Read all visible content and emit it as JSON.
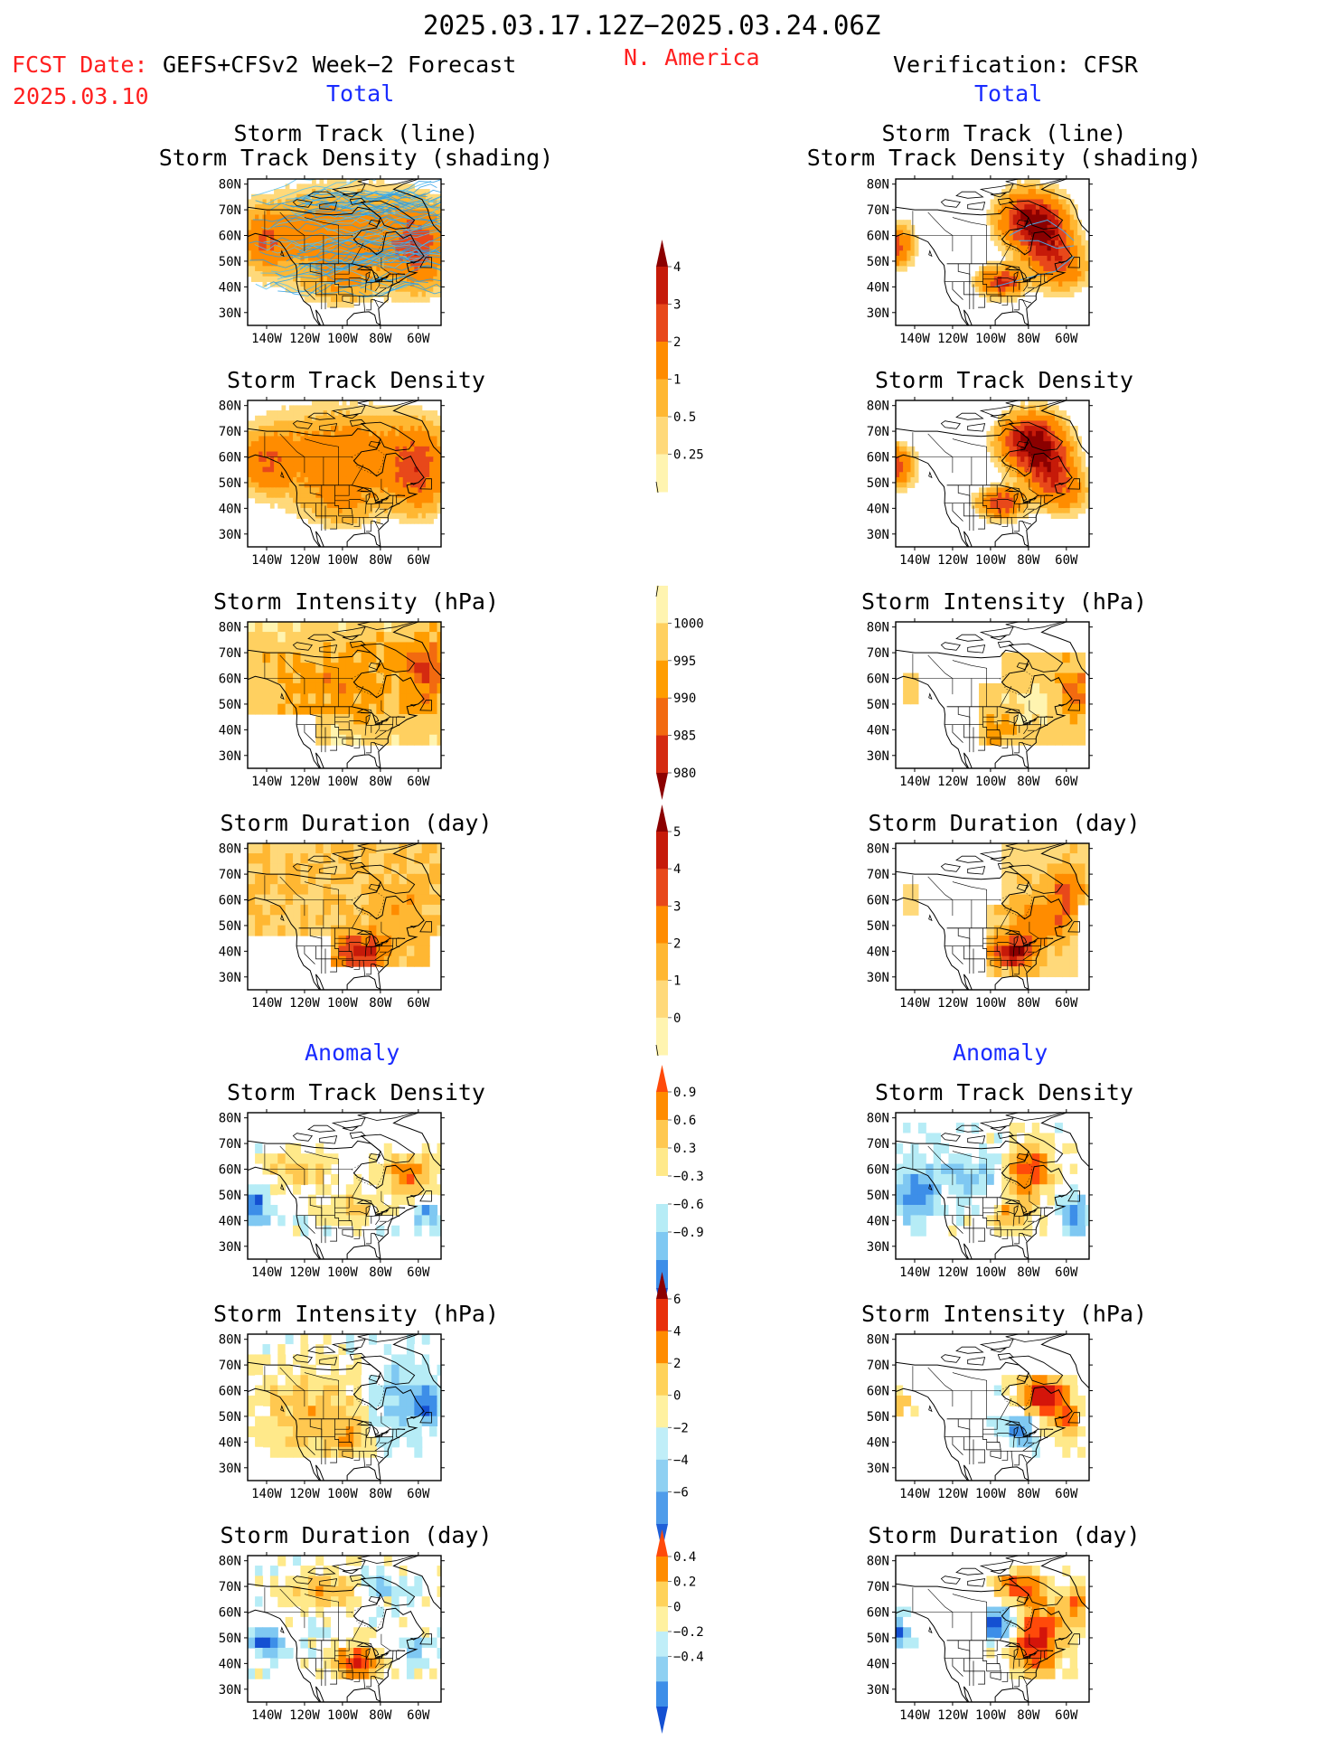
{
  "header": {
    "period": "2025.03.17.12Z−2025.03.24.06Z",
    "region": "N. America",
    "fcst_label": "FCST Date:",
    "fcst_date": "2025.03.10",
    "model": "GEFS+CFSv2 Week−2 Forecast",
    "verification": "Verification: CFSR"
  },
  "sections": {
    "left_total": "Total",
    "right_total": "Total",
    "left_anomaly": "Anomaly",
    "right_anomaly": "Anomaly"
  },
  "axes": {
    "lat_labels": [
      "80N",
      "70N",
      "60N",
      "50N",
      "40N",
      "30N"
    ],
    "lon_labels": [
      "140W",
      "120W",
      "100W",
      "80W",
      "60W"
    ]
  },
  "panels": {
    "track": {
      "title_line1": "Storm Track (line)",
      "title_line2": "Storm Track Density (shading)"
    },
    "density": {
      "title": "Storm Track Density"
    },
    "intensity": {
      "title": "Storm Intensity (hPa)"
    },
    "duration": {
      "title": "Storm Duration (day)"
    },
    "a_density": {
      "title": "Storm Track Density"
    },
    "a_intensity": {
      "title": "Storm Intensity (hPa)"
    },
    "a_duration": {
      "title": "Storm Duration (day)"
    }
  },
  "colorbars": {
    "density": {
      "labels": [
        "4",
        "3",
        "2",
        "1",
        "0.5",
        "0.25"
      ],
      "colors": [
        "#8b0000",
        "#c61a09",
        "#e8481a",
        "#ff8c00",
        "#ffb732",
        "#ffd97a",
        "#fff4b0"
      ]
    },
    "intensity": {
      "labels": [
        "1000",
        "995",
        "990",
        "985",
        "980"
      ],
      "colors": [
        "#fff4b0",
        "#ffd060",
        "#ff9d00",
        "#f26a10",
        "#d42a10",
        "#8b0000"
      ]
    },
    "duration": {
      "labels": [
        "5",
        "4",
        "3",
        "2",
        "1",
        "0"
      ],
      "colors": [
        "#8b0000",
        "#c61a09",
        "#e8481a",
        "#ff8c00",
        "#ffb732",
        "#ffd97a",
        "#fff4b0"
      ]
    },
    "a_density": {
      "labels": [
        "0.9",
        "0.6",
        "0.3",
        "−0.3",
        "−0.6",
        "−0.9"
      ],
      "colors": [
        "#ff4a0a",
        "#ff8c00",
        "#ffc850",
        "#ffe98a",
        "#ffffff",
        "#b6ecf6",
        "#7fc8f2",
        "#3d8ee8",
        "#1450d2"
      ]
    },
    "a_intensity": {
      "labels": [
        "6",
        "4",
        "2",
        "0",
        "−2",
        "−4",
        "−6"
      ],
      "colors": [
        "#8b0000",
        "#e8300a",
        "#ff8c00",
        "#ffd25a",
        "#fff1a0",
        "#c0eef8",
        "#8fd0f2",
        "#4f9cea",
        "#1f5fd8"
      ]
    },
    "a_duration": {
      "labels": [
        "0.4",
        "0.2",
        "0",
        "−0.2",
        "−0.4"
      ],
      "colors": [
        "#ff4a0a",
        "#ff8c00",
        "#ffd25a",
        "#fff1a0",
        "#c0eef8",
        "#8fd0f2",
        "#3d8ee8",
        "#1450d2"
      ]
    }
  }
}
